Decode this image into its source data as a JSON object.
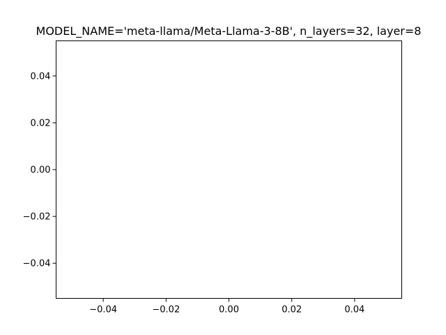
{
  "chart_data": {
    "type": "line",
    "title": "MODEL_NAME='meta-llama/Meta-Llama-3-8B', n_layers=32, layer=8",
    "xlabel": "",
    "ylabel": "",
    "series": [],
    "xlim": [
      -0.055,
      0.055
    ],
    "ylim": [
      -0.055,
      0.055
    ],
    "x_ticks": [
      -0.04,
      -0.02,
      0.0,
      0.02,
      0.04
    ],
    "y_ticks": [
      -0.04,
      -0.02,
      0.0,
      0.02,
      0.04
    ],
    "x_tick_labels": [
      "−0.04",
      "−0.02",
      "0.00",
      "0.02",
      "0.04"
    ],
    "y_tick_labels": [
      "−0.04",
      "−0.02",
      "0.00",
      "0.02",
      "0.04"
    ],
    "grid": false,
    "legend": "none",
    "colors": {
      "axes": "#000000",
      "background": "#ffffff"
    }
  }
}
